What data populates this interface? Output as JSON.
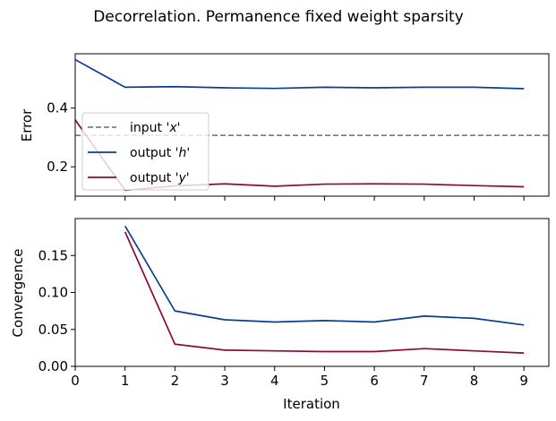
{
  "chart_data": {
    "title": "Decorrelation. Permanence fixed weight sparsity",
    "xlabel": "Iteration",
    "colors": {
      "input_x": "#808080",
      "output_h": "#0a3d91",
      "output_y": "#8b0a3a"
    },
    "legend": {
      "placement": "center-left",
      "entries": [
        {
          "key": "input_x",
          "prefix": "input '",
          "var": "x",
          "suffix": "'",
          "style": "dashed"
        },
        {
          "key": "output_h",
          "prefix": "output '",
          "var": "h",
          "suffix": "'",
          "style": "solid"
        },
        {
          "key": "output_y",
          "prefix": "output '",
          "var": "y",
          "suffix": "'",
          "style": "solid"
        }
      ]
    },
    "panels": [
      {
        "type": "line",
        "ylabel": "Error",
        "xlim": [
          0,
          9.5
        ],
        "ylim": [
          0.1,
          0.585
        ],
        "yticks": [
          0.2,
          0.4
        ],
        "ytick_labels": [
          "0.2",
          "0.4"
        ],
        "x": [
          0,
          1,
          2,
          3,
          4,
          5,
          6,
          7,
          8,
          9
        ],
        "hline": {
          "key": "input_x",
          "y": 0.307
        },
        "series": [
          {
            "key": "output_h",
            "values": [
              0.565,
              0.471,
              0.473,
              0.469,
              0.467,
              0.471,
              0.469,
              0.471,
              0.471,
              0.466
            ]
          },
          {
            "key": "output_y",
            "values": [
              0.36,
              0.12,
              0.135,
              0.142,
              0.134,
              0.141,
              0.142,
              0.141,
              0.136,
              0.132
            ]
          }
        ]
      },
      {
        "type": "line",
        "ylabel": "Convergence",
        "xlim": [
          0,
          9.5
        ],
        "ylim": [
          0.0,
          0.2
        ],
        "yticks": [
          0.0,
          0.05,
          0.1,
          0.15
        ],
        "ytick_labels": [
          "0.00",
          "0.05",
          "0.10",
          "0.15"
        ],
        "xticks": [
          0,
          1,
          2,
          3,
          4,
          5,
          6,
          7,
          8,
          9
        ],
        "xtick_labels": [
          "0",
          "1",
          "2",
          "3",
          "4",
          "5",
          "6",
          "7",
          "8",
          "9"
        ],
        "x": [
          1,
          2,
          3,
          4,
          5,
          6,
          7,
          8,
          9
        ],
        "series": [
          {
            "key": "output_h",
            "values": [
              0.19,
              0.075,
              0.063,
              0.06,
              0.062,
              0.06,
              0.068,
              0.065,
              0.056
            ]
          },
          {
            "key": "output_y",
            "values": [
              0.182,
              0.03,
              0.022,
              0.021,
              0.02,
              0.02,
              0.024,
              0.021,
              0.018
            ]
          }
        ]
      }
    ]
  }
}
